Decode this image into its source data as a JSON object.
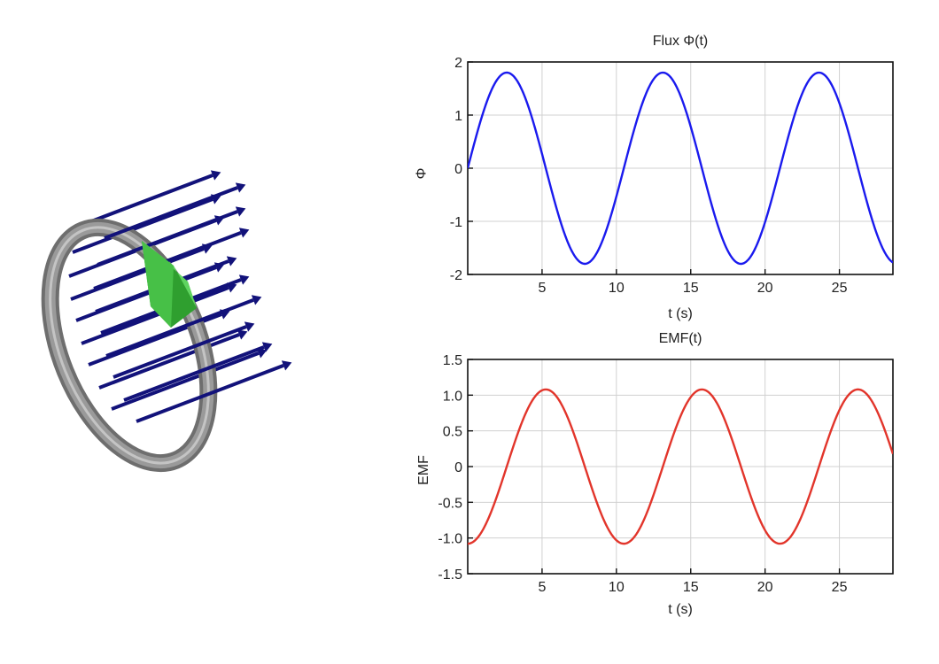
{
  "scene": {
    "description_icons": [
      "ring-icon",
      "field-arrow-icon",
      "sensor-icon"
    ],
    "colors": {
      "ring": "#8a8a8a",
      "arrows": "#12127a",
      "sensor": "#3fbf3f"
    }
  },
  "chart_data": [
    {
      "type": "line",
      "title": "Flux Φ(t)",
      "xlabel": "t (s)",
      "ylabel": "Φ",
      "xlim": [
        0,
        28.6
      ],
      "ylim": [
        -2,
        2
      ],
      "xticks": [
        5,
        10,
        15,
        20,
        25
      ],
      "yticks": [
        -2,
        -1,
        0,
        1,
        2
      ],
      "ytick_labels": [
        "-2",
        "-1",
        "0",
        "1",
        "2"
      ],
      "grid": true,
      "series": [
        {
          "color": "#1a1aee",
          "amplitude": 1.8,
          "period": 10.5,
          "phase": 0,
          "kind": "sin"
        }
      ]
    },
    {
      "type": "line",
      "title": "EMF(t)",
      "xlabel": "t (s)",
      "ylabel": "EMF",
      "xlim": [
        0,
        28.6
      ],
      "ylim": [
        -1.5,
        1.5
      ],
      "xticks": [
        5,
        10,
        15,
        20,
        25
      ],
      "yticks": [
        -1.5,
        -1.0,
        -0.5,
        0,
        0.5,
        1.0,
        1.5
      ],
      "ytick_labels": [
        "-1.5",
        "-1.0",
        "-0.5",
        "0",
        "0.5",
        "1.0",
        "1.5"
      ],
      "grid": true,
      "series": [
        {
          "color": "#e2352b",
          "amplitude": 1.08,
          "period": 10.5,
          "phase": 0,
          "kind": "neg-cos"
        }
      ]
    }
  ]
}
